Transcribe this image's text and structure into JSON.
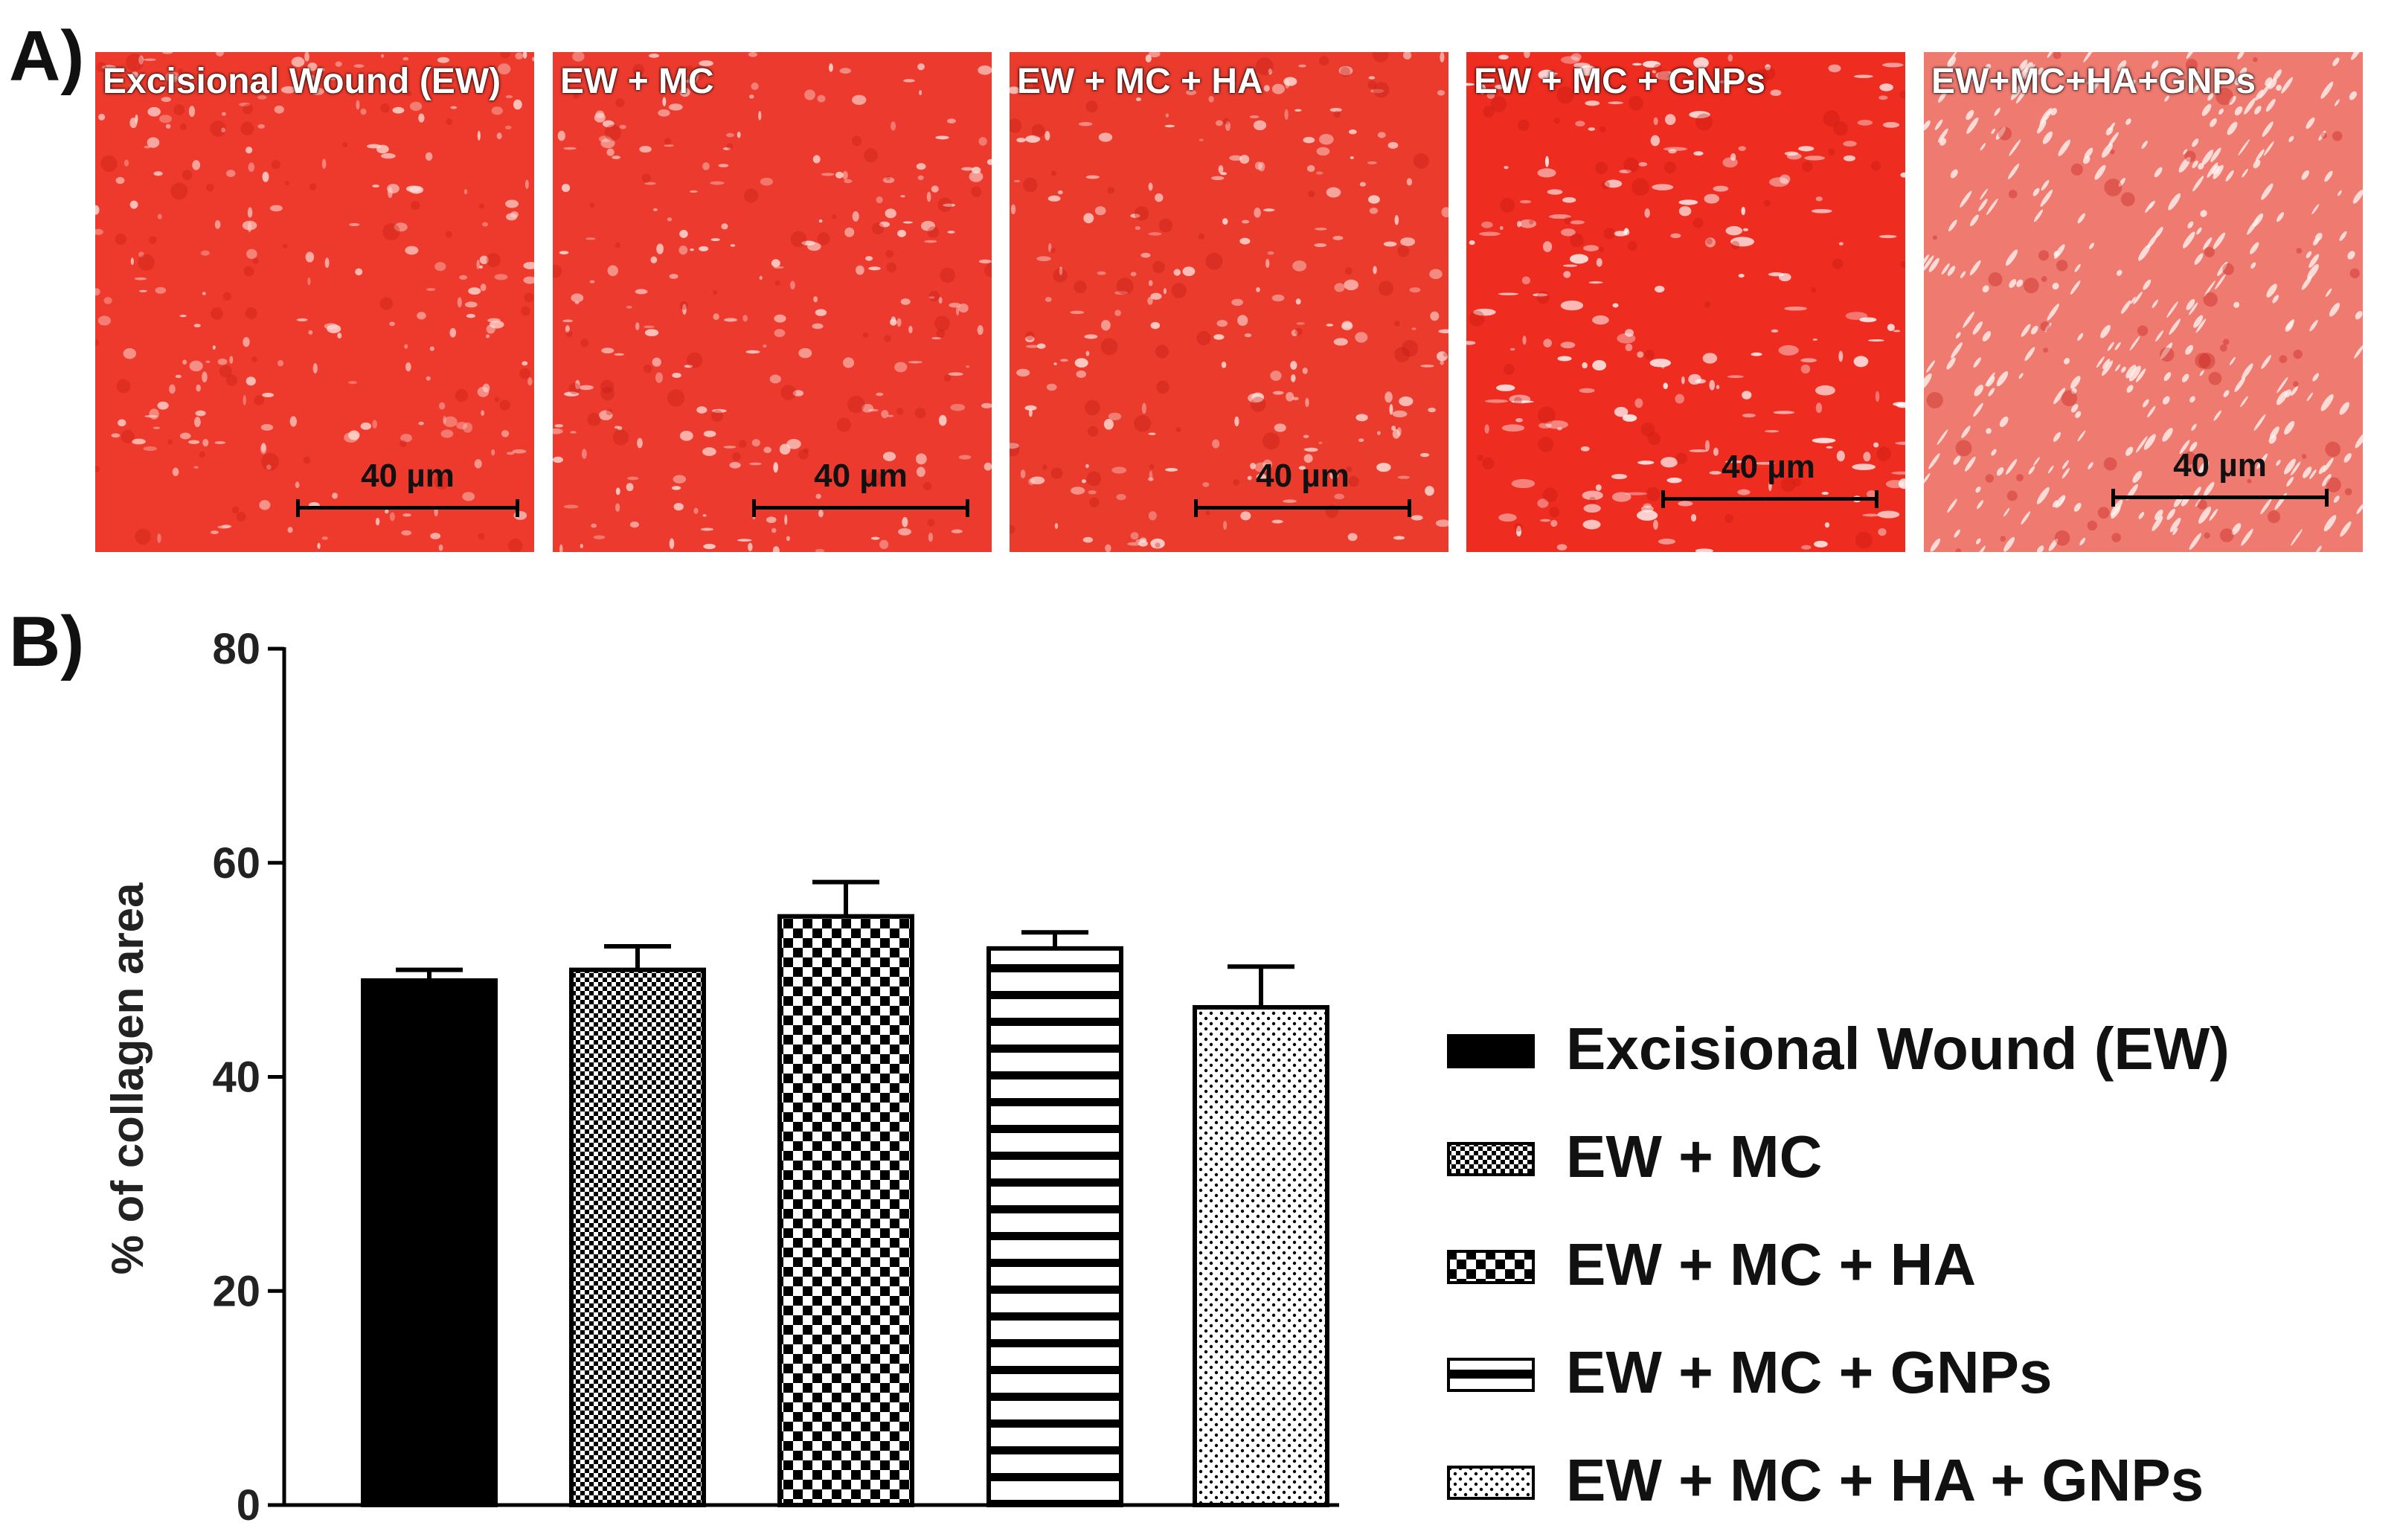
{
  "figure": {
    "panel_a_label": "A)",
    "panel_b_label": "B)"
  },
  "micrographs": [
    {
      "caption": "Excisional Wound (EW)",
      "scale": "40 µm",
      "tint": "#ee3a2c",
      "speckle": "#ffd9d2"
    },
    {
      "caption": "EW + MC",
      "scale": "40 µm",
      "tint": "#ec3b2e",
      "speckle": "#ffe0da"
    },
    {
      "caption": "EW + MC + HA",
      "scale": "40 µm",
      "tint": "#ea3b2d",
      "speckle": "#ffe2dc"
    },
    {
      "caption": "EW + MC + GNPs",
      "scale": "40 µm",
      "tint": "#ee2c20",
      "speckle": "#ffffff"
    },
    {
      "caption": "EW+MC+HA+GNPs",
      "scale": "40 µm",
      "tint": "#ef7a70",
      "speckle": "#fff2ef"
    }
  ],
  "chart_data": {
    "type": "bar",
    "title": "",
    "xlabel": "",
    "ylabel": "% of collagen area",
    "ylim": [
      0,
      80
    ],
    "yticks": [
      0,
      20,
      40,
      60,
      80
    ],
    "categories": [
      "Excisional Wound (EW)",
      "EW + MC",
      "EW + MC + HA",
      "EW + MC + GNPs",
      "EW + MC + HA + GNPs"
    ],
    "values": [
      49,
      50,
      55,
      52,
      46.5
    ],
    "errors": [
      1,
      2.2,
      3.2,
      1.5,
      3.8
    ],
    "patterns": [
      "solid",
      "checker-fine",
      "checker-coarse",
      "horizontal-stripes",
      "dots"
    ],
    "legend_position": "right",
    "legend": [
      "Excisional Wound (EW)",
      "EW + MC",
      "EW + MC + HA",
      "EW + MC + GNPs",
      "EW + MC + HA + GNPs"
    ]
  }
}
